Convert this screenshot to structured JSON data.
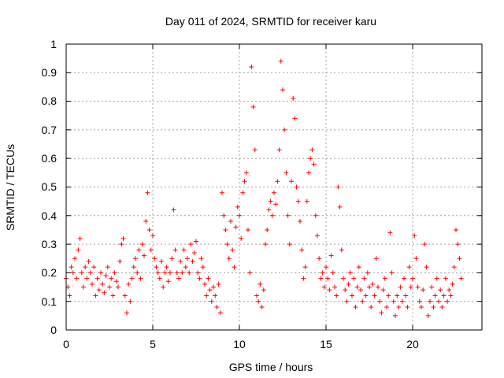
{
  "chart_data": {
    "type": "scatter",
    "title": "Day 011 of 2024, SRMTID for receiver karu",
    "xlabel": "GPS time / hours",
    "ylabel": "SRMTID / TECUs",
    "xlim": [
      0,
      24
    ],
    "ylim": [
      0,
      1
    ],
    "xticks": [
      0,
      5,
      10,
      15,
      20
    ],
    "xtick_labels": [
      "0",
      "5",
      "10",
      "15",
      "20"
    ],
    "yticks": [
      0,
      0.1,
      0.2,
      0.3,
      0.4,
      0.5,
      0.6,
      0.7,
      0.8,
      0.9,
      1
    ],
    "ytick_labels": [
      "0",
      "0.1",
      "0.2",
      "0.3",
      "0.4",
      "0.5",
      "0.6",
      "0.7",
      "0.8",
      "0.9",
      "1"
    ],
    "grid": true,
    "marker": "+",
    "marker_color": "#ff0000",
    "series": [
      {
        "name": "SRMTID",
        "points": [
          [
            0.0,
            0.18
          ],
          [
            0.1,
            0.15
          ],
          [
            0.2,
            0.12
          ],
          [
            0.3,
            0.22
          ],
          [
            0.4,
            0.2
          ],
          [
            0.5,
            0.25
          ],
          [
            0.6,
            0.18
          ],
          [
            0.7,
            0.28
          ],
          [
            0.8,
            0.32
          ],
          [
            0.9,
            0.2
          ],
          [
            1.0,
            0.15
          ],
          [
            1.1,
            0.22
          ],
          [
            1.2,
            0.18
          ],
          [
            1.3,
            0.24
          ],
          [
            1.4,
            0.2
          ],
          [
            1.5,
            0.16
          ],
          [
            1.6,
            0.22
          ],
          [
            1.7,
            0.12
          ],
          [
            1.8,
            0.18
          ],
          [
            1.9,
            0.14
          ],
          [
            2.0,
            0.2
          ],
          [
            2.1,
            0.16
          ],
          [
            2.2,
            0.13
          ],
          [
            2.3,
            0.19
          ],
          [
            2.4,
            0.22
          ],
          [
            2.5,
            0.15
          ],
          [
            2.6,
            0.18
          ],
          [
            2.7,
            0.12
          ],
          [
            2.8,
            0.2
          ],
          [
            2.9,
            0.17
          ],
          [
            3.0,
            0.15
          ],
          [
            3.1,
            0.24
          ],
          [
            3.2,
            0.3
          ],
          [
            3.3,
            0.32
          ],
          [
            3.4,
            0.12
          ],
          [
            3.5,
            0.06
          ],
          [
            3.6,
            0.16
          ],
          [
            3.7,
            0.1
          ],
          [
            3.8,
            0.18
          ],
          [
            3.9,
            0.22
          ],
          [
            4.0,
            0.25
          ],
          [
            4.1,
            0.2
          ],
          [
            4.2,
            0.28
          ],
          [
            4.3,
            0.18
          ],
          [
            4.4,
            0.3
          ],
          [
            4.5,
            0.26
          ],
          [
            4.6,
            0.38
          ],
          [
            4.7,
            0.48
          ],
          [
            4.8,
            0.35
          ],
          [
            4.9,
            0.28
          ],
          [
            5.0,
            0.33
          ],
          [
            5.1,
            0.25
          ],
          [
            5.2,
            0.22
          ],
          [
            5.3,
            0.2
          ],
          [
            5.4,
            0.18
          ],
          [
            5.5,
            0.24
          ],
          [
            5.6,
            0.15
          ],
          [
            5.7,
            0.2
          ],
          [
            5.8,
            0.22
          ],
          [
            5.9,
            0.17
          ],
          [
            6.0,
            0.2
          ],
          [
            6.1,
            0.25
          ],
          [
            6.2,
            0.42
          ],
          [
            6.3,
            0.28
          ],
          [
            6.4,
            0.2
          ],
          [
            6.5,
            0.18
          ],
          [
            6.6,
            0.24
          ],
          [
            6.7,
            0.2
          ],
          [
            6.8,
            0.28
          ],
          [
            6.9,
            0.22
          ],
          [
            7.0,
            0.25
          ],
          [
            7.1,
            0.2
          ],
          [
            7.2,
            0.3
          ],
          [
            7.3,
            0.24
          ],
          [
            7.4,
            0.27
          ],
          [
            7.5,
            0.31
          ],
          [
            7.6,
            0.2
          ],
          [
            7.7,
            0.18
          ],
          [
            7.8,
            0.25
          ],
          [
            7.9,
            0.22
          ],
          [
            8.0,
            0.16
          ],
          [
            8.1,
            0.12
          ],
          [
            8.2,
            0.18
          ],
          [
            8.3,
            0.14
          ],
          [
            8.4,
            0.1
          ],
          [
            8.5,
            0.15
          ],
          [
            8.6,
            0.12
          ],
          [
            8.7,
            0.08
          ],
          [
            8.8,
            0.16
          ],
          [
            8.9,
            0.06
          ],
          [
            9.0,
            0.48
          ],
          [
            9.1,
            0.4
          ],
          [
            9.2,
            0.35
          ],
          [
            9.3,
            0.3
          ],
          [
            9.4,
            0.25
          ],
          [
            9.5,
            0.38
          ],
          [
            9.6,
            0.28
          ],
          [
            9.7,
            0.22
          ],
          [
            9.8,
            0.36
          ],
          [
            9.9,
            0.43
          ],
          [
            10.0,
            0.4
          ],
          [
            10.1,
            0.32
          ],
          [
            10.2,
            0.48
          ],
          [
            10.3,
            0.52
          ],
          [
            10.4,
            0.55
          ],
          [
            10.5,
            0.35
          ],
          [
            10.6,
            0.2
          ],
          [
            10.7,
            0.92
          ],
          [
            10.8,
            0.78
          ],
          [
            10.9,
            0.63
          ],
          [
            11.0,
            0.12
          ],
          [
            11.1,
            0.1
          ],
          [
            11.2,
            0.16
          ],
          [
            11.3,
            0.08
          ],
          [
            11.4,
            0.14
          ],
          [
            11.5,
            0.3
          ],
          [
            11.6,
            0.35
          ],
          [
            11.7,
            0.42
          ],
          [
            11.8,
            0.45
          ],
          [
            11.9,
            0.4
          ],
          [
            12.0,
            0.48
          ],
          [
            12.1,
            0.44
          ],
          [
            12.2,
            0.52
          ],
          [
            12.3,
            0.63
          ],
          [
            12.4,
            0.94
          ],
          [
            12.5,
            0.84
          ],
          [
            12.6,
            0.7
          ],
          [
            12.7,
            0.55
          ],
          [
            12.8,
            0.4
          ],
          [
            12.9,
            0.3
          ],
          [
            13.0,
            0.52
          ],
          [
            13.1,
            0.81
          ],
          [
            13.2,
            0.74
          ],
          [
            13.3,
            0.5
          ],
          [
            13.4,
            0.45
          ],
          [
            13.5,
            0.38
          ],
          [
            13.6,
            0.28
          ],
          [
            13.7,
            0.18
          ],
          [
            13.8,
            0.22
          ],
          [
            13.9,
            0.45
          ],
          [
            14.0,
            0.55
          ],
          [
            14.1,
            0.6
          ],
          [
            14.2,
            0.63
          ],
          [
            14.3,
            0.58
          ],
          [
            14.4,
            0.4
          ],
          [
            14.5,
            0.33
          ],
          [
            14.6,
            0.25
          ],
          [
            14.7,
            0.18
          ],
          [
            14.8,
            0.2
          ],
          [
            14.9,
            0.15
          ],
          [
            15.0,
            0.22
          ],
          [
            15.1,
            0.18
          ],
          [
            15.2,
            0.14
          ],
          [
            15.3,
            0.26
          ],
          [
            15.4,
            0.2
          ],
          [
            15.5,
            0.15
          ],
          [
            15.6,
            0.12
          ],
          [
            15.7,
            0.5
          ],
          [
            15.8,
            0.43
          ],
          [
            15.9,
            0.28
          ],
          [
            16.0,
            0.18
          ],
          [
            16.1,
            0.14
          ],
          [
            16.2,
            0.1
          ],
          [
            16.3,
            0.16
          ],
          [
            16.4,
            0.2
          ],
          [
            16.5,
            0.12
          ],
          [
            16.6,
            0.18
          ],
          [
            16.7,
            0.08
          ],
          [
            16.8,
            0.15
          ],
          [
            16.9,
            0.22
          ],
          [
            17.0,
            0.14
          ],
          [
            17.1,
            0.1
          ],
          [
            17.2,
            0.18
          ],
          [
            17.3,
            0.12
          ],
          [
            17.4,
            0.2
          ],
          [
            17.5,
            0.15
          ],
          [
            17.6,
            0.08
          ],
          [
            17.7,
            0.16
          ],
          [
            17.8,
            0.12
          ],
          [
            17.9,
            0.25
          ],
          [
            18.0,
            0.15
          ],
          [
            18.1,
            0.1
          ],
          [
            18.2,
            0.06
          ],
          [
            18.3,
            0.14
          ],
          [
            18.4,
            0.18
          ],
          [
            18.5,
            0.08
          ],
          [
            18.6,
            0.12
          ],
          [
            18.7,
            0.34
          ],
          [
            18.8,
            0.2
          ],
          [
            18.9,
            0.1
          ],
          [
            19.0,
            0.05
          ],
          [
            19.1,
            0.12
          ],
          [
            19.2,
            0.08
          ],
          [
            19.3,
            0.15
          ],
          [
            19.4,
            0.1
          ],
          [
            19.5,
            0.18
          ],
          [
            19.6,
            0.12
          ],
          [
            19.7,
            0.08
          ],
          [
            19.8,
            0.22
          ],
          [
            19.9,
            0.15
          ],
          [
            20.0,
            0.18
          ],
          [
            20.1,
            0.33
          ],
          [
            20.2,
            0.25
          ],
          [
            20.3,
            0.15
          ],
          [
            20.4,
            0.1
          ],
          [
            20.5,
            0.08
          ],
          [
            20.6,
            0.14
          ],
          [
            20.7,
            0.3
          ],
          [
            20.8,
            0.22
          ],
          [
            20.9,
            0.05
          ],
          [
            21.0,
            0.1
          ],
          [
            21.1,
            0.15
          ],
          [
            21.2,
            0.08
          ],
          [
            21.3,
            0.12
          ],
          [
            21.4,
            0.18
          ],
          [
            21.5,
            0.1
          ],
          [
            21.6,
            0.14
          ],
          [
            21.7,
            0.08
          ],
          [
            21.8,
            0.12
          ],
          [
            21.9,
            0.18
          ],
          [
            22.0,
            0.1
          ],
          [
            22.1,
            0.14
          ],
          [
            22.2,
            0.12
          ],
          [
            22.3,
            0.16
          ],
          [
            22.4,
            0.22
          ],
          [
            22.5,
            0.35
          ],
          [
            22.6,
            0.3
          ],
          [
            22.7,
            0.25
          ],
          [
            22.8,
            0.18
          ]
        ]
      }
    ]
  }
}
